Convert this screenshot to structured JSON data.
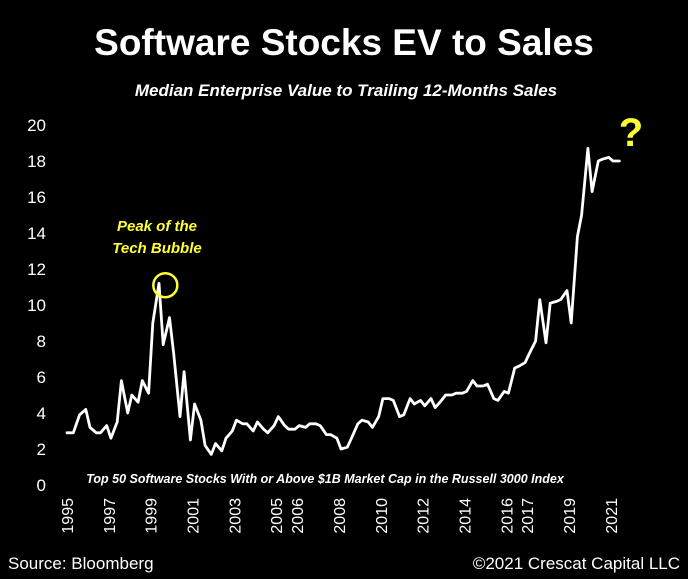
{
  "chart_data": {
    "type": "line",
    "title": "Software Stocks EV to Sales",
    "subtitle": "Median Enterprise Value to Trailing 12-Months Sales",
    "xlabel": "",
    "ylabel": "",
    "ylim": [
      0,
      20
    ],
    "yticks": [
      0,
      2,
      4,
      6,
      8,
      10,
      12,
      14,
      16,
      18,
      20
    ],
    "xlim": [
      1995.0,
      2022.2
    ],
    "xticks": [
      "1995",
      "1997",
      "1999",
      "2001",
      "2003",
      "2005",
      "2006",
      "2008",
      "2010",
      "2012",
      "2014",
      "2016",
      "2017",
      "2019",
      "2021"
    ],
    "line_color": "#ffffff",
    "grid": false,
    "legend": "none",
    "series": [
      {
        "name": "",
        "x": [
          1995.0,
          1995.3,
          1995.6,
          1995.9,
          1996.1,
          1996.4,
          1996.6,
          1996.9,
          1997.1,
          1997.4,
          1997.6,
          1997.9,
          1998.1,
          1998.4,
          1998.6,
          1998.9,
          1999.1,
          1999.4,
          1999.6,
          1999.9,
          2000.1,
          2000.4,
          2000.6,
          2000.9,
          2001.1,
          2001.4,
          2001.6,
          2001.9,
          2002.1,
          2002.4,
          2002.6,
          2002.9,
          2003.1,
          2003.4,
          2003.6,
          2003.9,
          2004.1,
          2004.4,
          2004.6,
          2004.9,
          2005.1,
          2005.4,
          2005.6,
          2005.9,
          2006.1,
          2006.4,
          2006.6,
          2006.9,
          2007.1,
          2007.4,
          2007.6,
          2007.9,
          2008.1,
          2008.4,
          2008.6,
          2008.9,
          2009.1,
          2009.4,
          2009.6,
          2009.9,
          2010.1,
          2010.4,
          2010.6,
          2010.9,
          2011.1,
          2011.4,
          2011.6,
          2011.9,
          2012.1,
          2012.4,
          2012.6,
          2012.9,
          2013.1,
          2013.4,
          2013.6,
          2013.9,
          2014.1,
          2014.4,
          2014.6,
          2014.9,
          2015.1,
          2015.4,
          2015.6,
          2015.9,
          2016.1,
          2016.4,
          2016.6,
          2016.9,
          2017.1,
          2017.4,
          2017.6,
          2017.9,
          2018.1,
          2018.4,
          2018.6,
          2018.9,
          2019.1,
          2019.4,
          2019.6,
          2019.9,
          2020.1,
          2020.4,
          2020.6,
          2020.9,
          2021.1,
          2021.4
        ],
        "values": [
          2.9,
          2.9,
          3.9,
          4.2,
          3.2,
          2.9,
          2.9,
          3.3,
          2.6,
          3.5,
          5.8,
          4.0,
          5.0,
          4.6,
          5.8,
          5.1,
          9.0,
          11.2,
          7.8,
          9.3,
          7.3,
          3.8,
          6.3,
          2.5,
          4.5,
          3.6,
          2.2,
          1.7,
          2.3,
          1.9,
          2.6,
          3.0,
          3.6,
          3.4,
          3.4,
          3.0,
          3.5,
          3.1,
          2.9,
          3.3,
          3.8,
          3.3,
          3.1,
          3.1,
          3.3,
          3.2,
          3.4,
          3.4,
          3.3,
          2.8,
          2.8,
          2.6,
          2.0,
          2.1,
          2.6,
          3.4,
          3.6,
          3.5,
          3.2,
          3.8,
          4.8,
          4.8,
          4.7,
          3.8,
          3.9,
          4.8,
          4.5,
          4.7,
          4.4,
          4.8,
          4.3,
          4.7,
          5.0,
          5.0,
          5.1,
          5.1,
          5.2,
          5.8,
          5.5,
          5.5,
          5.6,
          4.8,
          4.7,
          5.2,
          5.1,
          6.5,
          6.6,
          6.8,
          7.3,
          8.0,
          10.3,
          7.9,
          10.1,
          10.2,
          10.3,
          10.8,
          9.0,
          13.8,
          15.0,
          18.7,
          16.3,
          18.0,
          18.1,
          18.2,
          18.0,
          18.0
        ]
      }
    ],
    "annotations": {
      "peak_label_line1": "Peak of the",
      "peak_label_line2": "Tech Bubble",
      "peak_point": {
        "x": 1999.7,
        "y": 11.1
      },
      "question_mark": "?",
      "note": "Top 50 Software Stocks With or Above $1B Market Cap in the Russell 3000 Index"
    },
    "accent_color": "#ffff33"
  },
  "footer": {
    "source": "Source: Bloomberg",
    "copyright": "©2021 Crescat Capital LLC"
  }
}
